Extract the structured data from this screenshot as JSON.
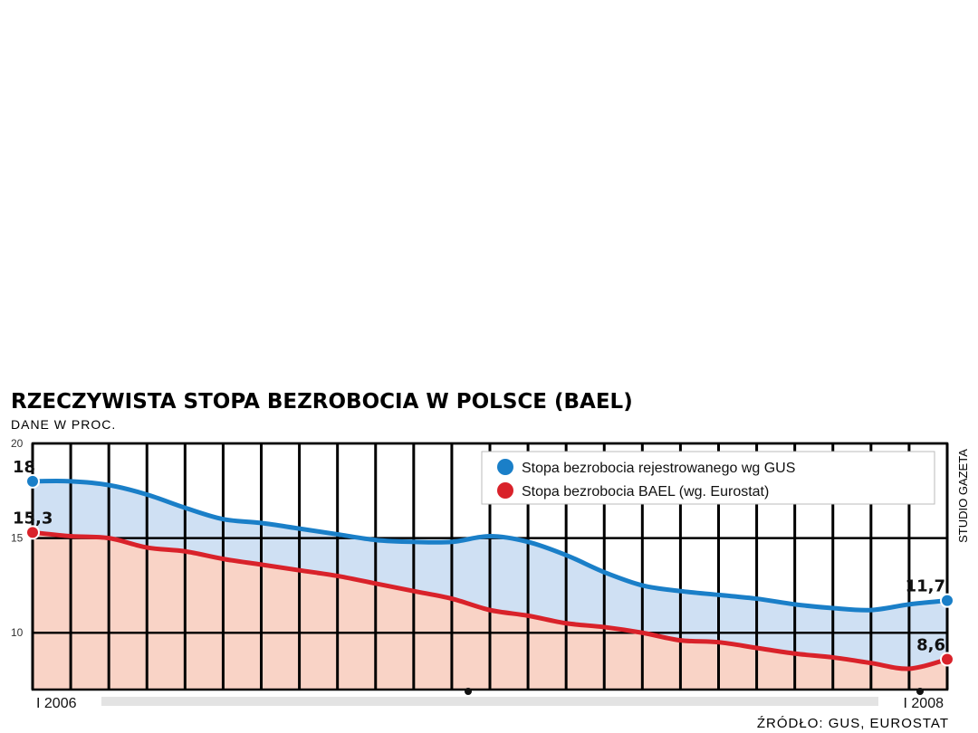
{
  "colors": {
    "gus_line": "#1a7fc8",
    "gus_fill": "#cfe0f3",
    "bael_line": "#d9222a",
    "bael_fill": "#f9d3c6",
    "frame": "#000000"
  },
  "chart_data": {
    "type": "area",
    "title": "RZECZYWISTA STOPA BEZROBOCIA W POLSCE (BAEL)",
    "subtitle": "DANE W PROC.",
    "ylim": [
      7,
      20
    ],
    "yticks": [
      "20",
      "15",
      "10"
    ],
    "xlim": [
      0,
      24
    ],
    "xtick_labels": [
      "I 2006",
      "I 2008"
    ],
    "grid": true,
    "legend_position": "top-right",
    "series": [
      {
        "name": "Stopa bezrobocia rejestrowanego wg GUS",
        "color": "#1a7fc8",
        "x": [
          0,
          1,
          2,
          3,
          4,
          5,
          6,
          7,
          8,
          9,
          10,
          11,
          12,
          13,
          14,
          15,
          16,
          17,
          18,
          19,
          20,
          21,
          22,
          23,
          24
        ],
        "y": [
          18.0,
          18.0,
          17.8,
          17.3,
          16.6,
          16.0,
          15.8,
          15.5,
          15.2,
          14.9,
          14.8,
          14.8,
          15.1,
          14.8,
          14.1,
          13.2,
          12.5,
          12.2,
          12.0,
          11.8,
          11.5,
          11.3,
          11.2,
          11.5,
          11.7
        ],
        "start_label": "18",
        "end_label": "11,7"
      },
      {
        "name": "Stopa bezrobocia BAEL (wg. Eurostat)",
        "color": "#d9222a",
        "x": [
          0,
          1,
          2,
          3,
          4,
          5,
          6,
          7,
          8,
          9,
          10,
          11,
          12,
          13,
          14,
          15,
          16,
          17,
          18,
          19,
          20,
          21,
          22,
          23,
          24
        ],
        "y": [
          15.3,
          15.1,
          15.0,
          14.5,
          14.3,
          13.9,
          13.6,
          13.3,
          13.0,
          12.6,
          12.2,
          11.8,
          11.2,
          10.9,
          10.5,
          10.3,
          10.0,
          9.6,
          9.5,
          9.2,
          8.9,
          8.7,
          8.4,
          8.1,
          8.6
        ],
        "start_label": "15,3",
        "end_label": "8,6"
      }
    ],
    "source": "ŹRÓDŁO: GUS, EUROSTAT",
    "credit": "STUDIO GAZETA"
  }
}
